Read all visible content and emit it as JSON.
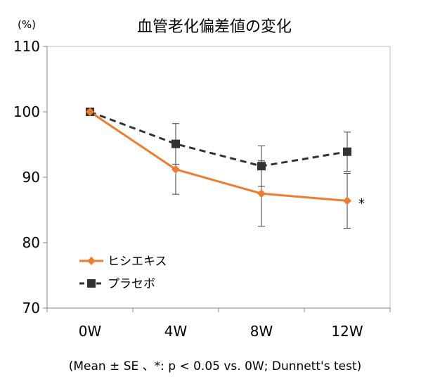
{
  "chart_data": {
    "type": "line",
    "title": "血管老化偏差値の変化",
    "y_unit": "(%)",
    "categories": [
      "0W",
      "4W",
      "8W",
      "12W"
    ],
    "ylim": [
      70,
      110
    ],
    "yticks": [
      "70",
      "80",
      "90",
      "100",
      "110"
    ],
    "grid": false,
    "legend_position": "bottom-left",
    "significance_mark": "*",
    "footnote": "(Mean ± SE 、*: p < 0.05 vs. 0W; Dunnett's test)",
    "series": [
      {
        "name": "ヒシエキス",
        "color": "#ED7D31",
        "marker": "diamond",
        "line": "solid",
        "values": [
          100,
          91.2,
          87.5,
          86.4
        ],
        "se": [
          0,
          3.8,
          5.0,
          4.2
        ]
      },
      {
        "name": "プラセボ",
        "color": "#333333",
        "marker": "square",
        "line": "dashed",
        "values": [
          100,
          95.1,
          91.7,
          93.9
        ],
        "se": [
          0,
          3.1,
          3.1,
          3.0
        ]
      }
    ]
  }
}
